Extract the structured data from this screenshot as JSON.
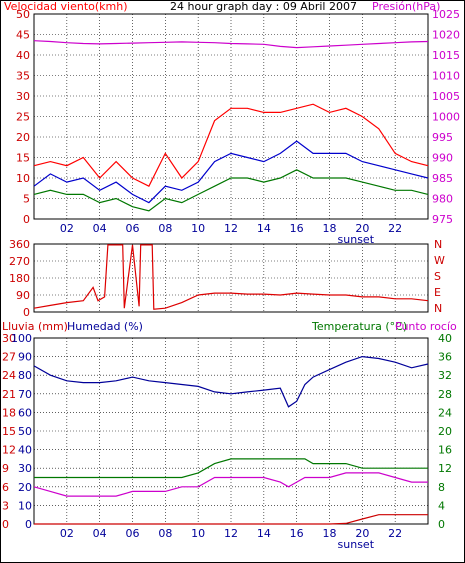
{
  "header": {
    "wind_title": "Velocidad viento(kmh)",
    "graph_title": "24 hour graph day : 09 Abril 2007",
    "pressure_title": "Presión(hPa)"
  },
  "mid": {
    "right_letters": [
      "N",
      "W",
      "S",
      "E",
      "N"
    ]
  },
  "bottom": {
    "rain_title": "Lluvia (mm)",
    "humidity_title": "Humedad (%)",
    "temp_title": "Temperatura (°C)",
    "dew_title": "Punto rocío"
  },
  "x_ticks": [
    "02",
    "04",
    "06",
    "08",
    "10",
    "12",
    "14",
    "16",
    "18",
    "20",
    "22"
  ],
  "sunset_label": "sunset",
  "colors": {
    "wind_gust": "#ff0000",
    "wind_avg": "#0000cc",
    "wind_speed": "#007700",
    "pressure": "#cc00cc",
    "direction": "#dd0000",
    "humidity": "#000099",
    "temperature": "#007700",
    "dewpoint": "#cc00cc",
    "rain": "#cc0000",
    "grid": "#000000"
  },
  "chart_data": [
    {
      "type": "line",
      "title": "Velocidad viento(kmh) / Presión(hPa)",
      "ylabel": "Velocidad viento(kmh)",
      "y2label": "Presión(hPa)",
      "ylim": [
        0,
        50
      ],
      "y2lim": [
        975,
        1025
      ],
      "yticks": [
        "0",
        "5",
        "10",
        "15",
        "20",
        "25",
        "30",
        "35",
        "40",
        "45",
        "50"
      ],
      "y2ticks": [
        "975",
        "980",
        "985",
        "990",
        "995",
        "1000",
        "1005",
        "1010",
        "1015",
        "1020",
        "1025"
      ],
      "x_hours": [
        0,
        1,
        2,
        3,
        4,
        5,
        6,
        7,
        8,
        9,
        10,
        11,
        12,
        13,
        14,
        15,
        16,
        17,
        18,
        19,
        20,
        21,
        22,
        23,
        24
      ],
      "series": [
        {
          "name": "gust",
          "color": "#ff0000",
          "values": [
            13,
            14,
            13,
            15,
            10,
            14,
            10,
            8,
            16,
            10,
            14,
            24,
            27,
            27,
            26,
            26,
            27,
            28,
            26,
            27,
            25,
            22,
            16,
            14,
            13
          ]
        },
        {
          "name": "average",
          "color": "#0000cc",
          "values": [
            8,
            11,
            9,
            10,
            7,
            9,
            6,
            4,
            8,
            7,
            9,
            14,
            16,
            15,
            14,
            16,
            19,
            16,
            16,
            16,
            14,
            13,
            12,
            11,
            10
          ]
        },
        {
          "name": "speed",
          "color": "#007700",
          "values": [
            6,
            7,
            6,
            6,
            4,
            5,
            3,
            2,
            5,
            4,
            6,
            8,
            10,
            10,
            9,
            10,
            12,
            10,
            10,
            10,
            9,
            8,
            7,
            7,
            6
          ]
        },
        {
          "name": "pressure",
          "color": "#cc00cc",
          "values": [
            1018.5,
            1018.3,
            1018.0,
            1017.8,
            1017.7,
            1017.8,
            1017.9,
            1018.0,
            1018.1,
            1018.2,
            1018.1,
            1018.0,
            1017.8,
            1017.7,
            1017.6,
            1017.1,
            1016.8,
            1017.0,
            1017.2,
            1017.4,
            1017.6,
            1017.8,
            1018.0,
            1018.2,
            1018.3
          ]
        }
      ]
    },
    {
      "type": "line",
      "title": "",
      "ylim": [
        0,
        360
      ],
      "yticks": [
        "0",
        "90",
        "180",
        "270",
        "360"
      ],
      "x_hours": [
        0,
        1,
        2,
        3,
        3.6,
        3.9,
        4.3,
        4.5,
        4.6,
        5.4,
        5.5,
        6.0,
        6.4,
        6.5,
        7.2,
        7.3,
        8.0,
        9,
        10,
        11,
        12,
        13,
        14,
        15,
        16,
        17,
        18,
        19,
        20,
        21,
        22,
        23,
        24
      ],
      "series": [
        {
          "name": "direction",
          "color": "#dd0000",
          "values": [
            20,
            35,
            50,
            60,
            130,
            60,
            80,
            355,
            355,
            355,
            20,
            355,
            30,
            355,
            355,
            15,
            20,
            50,
            90,
            100,
            100,
            95,
            95,
            90,
            100,
            95,
            90,
            90,
            80,
            80,
            70,
            70,
            60
          ]
        }
      ]
    },
    {
      "type": "line",
      "title": "",
      "left_axis1": {
        "label": "Lluvia (mm)",
        "ylim": [
          0,
          30
        ],
        "ticks": [
          "0",
          "3",
          "6",
          "9",
          "12",
          "15",
          "18",
          "21",
          "24",
          "27",
          "30"
        ]
      },
      "left_axis2": {
        "label": "Humedad (%)",
        "ylim": [
          0,
          100
        ],
        "ticks": [
          "0",
          "10",
          "20",
          "30",
          "40",
          "50",
          "60",
          "70",
          "80",
          "90",
          "100"
        ]
      },
      "right_axis": {
        "label": "Temperatura (°C)",
        "ylim": [
          0,
          40
        ],
        "ticks": [
          "0",
          "4",
          "8",
          "12",
          "16",
          "20",
          "24",
          "28",
          "32",
          "36",
          "40"
        ]
      },
      "x_hours": [
        0,
        1,
        2,
        3,
        4,
        5,
        6,
        7,
        8,
        9,
        10,
        11,
        12,
        13,
        14,
        15,
        15.5,
        16,
        16.5,
        17,
        18,
        19,
        20,
        21,
        22,
        23,
        24
      ],
      "series": [
        {
          "name": "humidity",
          "color": "#000099",
          "axis": "left2",
          "values": [
            85,
            80,
            77,
            76,
            76,
            77,
            79,
            77,
            76,
            75,
            74,
            71,
            70,
            71,
            72,
            73,
            63,
            66,
            75,
            79,
            83,
            87,
            90,
            89,
            87,
            84,
            86
          ]
        },
        {
          "name": "temperature",
          "color": "#007700",
          "axis": "right",
          "values": [
            10,
            10,
            10,
            10,
            10,
            10,
            10,
            10,
            10,
            10,
            11,
            13,
            14,
            14,
            14,
            14,
            14,
            14,
            14,
            13,
            13,
            13,
            12,
            12,
            12,
            12,
            12
          ]
        },
        {
          "name": "dewpoint",
          "color": "#cc00cc",
          "axis": "right",
          "values": [
            8,
            7,
            6,
            6,
            6,
            6,
            7,
            7,
            7,
            8,
            8,
            10,
            10,
            10,
            10,
            9,
            8,
            9,
            10,
            10,
            10,
            11,
            11,
            11,
            10,
            9,
            9
          ]
        },
        {
          "name": "rain",
          "color": "#cc0000",
          "axis": "left1",
          "values": [
            0,
            0,
            0,
            0,
            0,
            0,
            0,
            0,
            0,
            0,
            0,
            0,
            0,
            0,
            0,
            0,
            0,
            0,
            0,
            0,
            0,
            0.1,
            0.8,
            1.5,
            1.5,
            1.5,
            1.5
          ]
        }
      ]
    }
  ]
}
